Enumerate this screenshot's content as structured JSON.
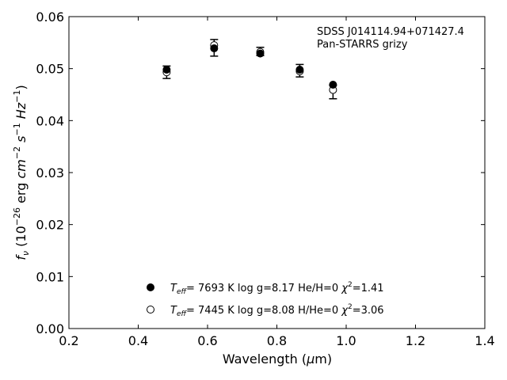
{
  "chart_data": {
    "type": "scatter",
    "xlabel_pre": "Wavelength (",
    "xlabel_mu": "μ",
    "xlabel_post": "m)",
    "ylabel": {
      "f": "f",
      "nu": "ν",
      "open": " (10",
      "exp1": "−26",
      "erg": " erg ",
      "cm": "cm",
      "exp2": "−2",
      "s": " s",
      "exp3": "−1",
      "hz": " Hz",
      "exp4": "−1",
      "close": ")"
    },
    "xlim": [
      0.2,
      1.4
    ],
    "ylim": [
      0.0,
      0.06
    ],
    "xticks": [
      0.2,
      0.4,
      0.6,
      0.8,
      1.0,
      1.2,
      1.4
    ],
    "xtick_labels": [
      "0.2",
      "0.4",
      "0.6",
      "0.8",
      "1.0",
      "1.2",
      "1.4"
    ],
    "yticks": [
      0.0,
      0.01,
      0.02,
      0.03,
      0.04,
      0.05,
      0.06
    ],
    "ytick_labels": [
      "0.00",
      "0.01",
      "0.02",
      "0.03",
      "0.04",
      "0.05",
      "0.06"
    ],
    "annotation": [
      "SDSS J014114.94+071427.4",
      "Pan-STARRS grizy"
    ],
    "observed": {
      "x": [
        0.482,
        0.619,
        0.752,
        0.866,
        0.962
      ],
      "y": [
        0.0493,
        0.054,
        0.0533,
        0.0496,
        0.0455
      ],
      "yerr": [
        0.0012,
        0.0016,
        0.0008,
        0.0012,
        0.0013
      ]
    },
    "series": [
      {
        "marker": "filled",
        "x": [
          0.482,
          0.619,
          0.752,
          0.866,
          0.962
        ],
        "y": [
          0.0498,
          0.0539,
          0.0529,
          0.0498,
          0.0469
        ],
        "legend": {
          "t": "T",
          "sub": "eff",
          "text1": "=  7693 K  log g=8.17  He/H=0  ",
          "chi": "χ",
          "sup": "2",
          "text2": "=1.41"
        }
      },
      {
        "marker": "open",
        "x": [
          0.482,
          0.619,
          0.752,
          0.866,
          0.962
        ],
        "y": [
          0.0493,
          0.0545,
          0.0532,
          0.0495,
          0.0459
        ],
        "legend": {
          "t": "T",
          "sub": "eff",
          "text1": "=  7445 K  log g=8.08  H/He=0  ",
          "chi": "χ",
          "sup": "2",
          "text2": "=3.06"
        }
      }
    ],
    "colors": {
      "marker": "#000000",
      "open_fill": "#ffffff"
    }
  }
}
